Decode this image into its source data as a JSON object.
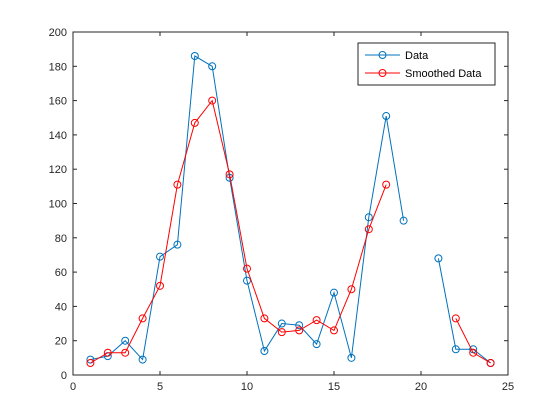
{
  "chart_data": {
    "type": "line",
    "title": "",
    "xlabel": "",
    "ylabel": "",
    "xlim": [
      0,
      25
    ],
    "ylim": [
      0,
      200
    ],
    "xticks": [
      0,
      5,
      10,
      15,
      20,
      25
    ],
    "yticks": [
      0,
      20,
      40,
      60,
      80,
      100,
      120,
      140,
      160,
      180,
      200
    ],
    "grid": false,
    "legend_position": "top-right",
    "series": [
      {
        "name": "Data",
        "color": "#0072BD",
        "marker": "circle",
        "points": [
          [
            1,
            9
          ],
          [
            2,
            11
          ],
          [
            3,
            20
          ],
          [
            4,
            9
          ],
          [
            5,
            69
          ],
          [
            6,
            76
          ],
          [
            7,
            186
          ],
          [
            8,
            180
          ],
          [
            9,
            115
          ],
          [
            10,
            55
          ],
          [
            11,
            14
          ],
          [
            12,
            30
          ],
          [
            13,
            29
          ],
          [
            14,
            18
          ],
          [
            15,
            48
          ],
          [
            16,
            10
          ],
          [
            17,
            92
          ],
          [
            18,
            151
          ],
          [
            19,
            90
          ],
          [
            20,
            null
          ],
          [
            21,
            68
          ],
          [
            22,
            15
          ],
          [
            23,
            15
          ],
          [
            24,
            7
          ]
        ]
      },
      {
        "name": "Smoothed Data",
        "color": "#FF0000",
        "marker": "circle",
        "points": [
          [
            1,
            7
          ],
          [
            2,
            13
          ],
          [
            3,
            13
          ],
          [
            4,
            33
          ],
          [
            5,
            52
          ],
          [
            6,
            111
          ],
          [
            7,
            147
          ],
          [
            8,
            160
          ],
          [
            9,
            117
          ],
          [
            10,
            62
          ],
          [
            11,
            33
          ],
          [
            12,
            25
          ],
          [
            13,
            26
          ],
          [
            14,
            32
          ],
          [
            15,
            26
          ],
          [
            16,
            50
          ],
          [
            17,
            85
          ],
          [
            18,
            111
          ],
          [
            19,
            null
          ],
          [
            20,
            null
          ],
          [
            21,
            null
          ],
          [
            22,
            33
          ],
          [
            23,
            13
          ],
          [
            24,
            7
          ]
        ]
      }
    ]
  }
}
